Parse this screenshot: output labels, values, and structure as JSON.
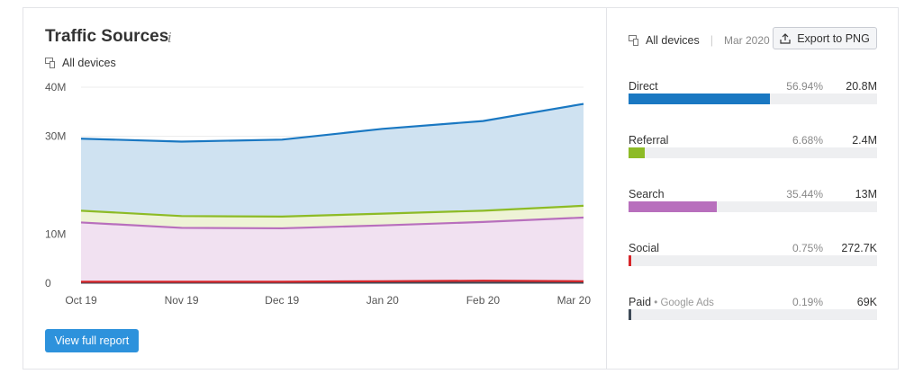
{
  "widget": {
    "title": "Traffic Sources",
    "info_icon": "i",
    "devices_label": "All devices",
    "view_report_label": "View full report"
  },
  "right_panel": {
    "devices_label": "All devices",
    "separator": "|",
    "date": "Mar 2020",
    "export_label": "Export to PNG"
  },
  "sources": [
    {
      "name": "Direct",
      "sub": "",
      "pct": "56.94%",
      "value": "20.8M",
      "share": 0.5694,
      "color": "#1a78c2"
    },
    {
      "name": "Referral",
      "sub": "",
      "pct": "6.68%",
      "value": "2.4M",
      "share": 0.0668,
      "color": "#8dbb26"
    },
    {
      "name": "Search",
      "sub": "",
      "pct": "35.44%",
      "value": "13M",
      "share": 0.3544,
      "color": "#b86fbd"
    },
    {
      "name": "Social",
      "sub": "",
      "pct": "0.75%",
      "value": "272.7K",
      "share": 0.0075,
      "color": "#d7262a"
    },
    {
      "name": "Paid",
      "sub": "Google Ads",
      "pct": "0.19%",
      "value": "69K",
      "share": 0.0019,
      "color": "#3e4a57"
    }
  ],
  "chart_data": {
    "type": "area",
    "stacked": true,
    "categories": [
      "Oct 19",
      "Nov 19",
      "Dec 19",
      "Jan 20",
      "Feb 20",
      "Mar 20"
    ],
    "y_ticks": [
      "0",
      "10M",
      "30M",
      "40M"
    ],
    "y_tick_values": [
      0,
      10,
      30,
      40
    ],
    "ylim": [
      0,
      40
    ],
    "series": [
      {
        "name": "Paid",
        "color": "#3e4a57",
        "fill": "#3e4a57",
        "values": [
          0.1,
          0.1,
          0.1,
          0.1,
          0.1,
          0.1
        ]
      },
      {
        "name": "Social",
        "color": "#d7262a",
        "fill": "#f4c9ca",
        "values": [
          0.2,
          0.2,
          0.2,
          0.3,
          0.4,
          0.3
        ]
      },
      {
        "name": "Search",
        "color": "#b86fbd",
        "fill": "#f1e1f1",
        "values": [
          12.1,
          11.0,
          10.9,
          11.4,
          12.0,
          13.0
        ]
      },
      {
        "name": "Referral",
        "color": "#8dbb26",
        "fill": "#eef3d6",
        "values": [
          2.4,
          2.4,
          2.4,
          2.4,
          2.3,
          2.4
        ]
      },
      {
        "name": "Direct",
        "color": "#1a78c2",
        "fill": "#cfe2f1",
        "values": [
          14.7,
          15.2,
          15.7,
          17.3,
          18.3,
          20.8
        ]
      }
    ]
  }
}
